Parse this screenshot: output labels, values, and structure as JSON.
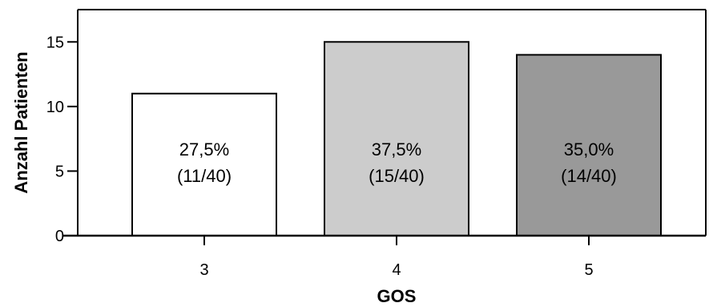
{
  "chart_data": {
    "type": "bar",
    "title": "",
    "xlabel": "GOS",
    "ylabel": "Anzahl Patienten",
    "ylim": [
      0,
      17.5
    ],
    "yticks": [
      0,
      5,
      10,
      15
    ],
    "categories": [
      "3",
      "4",
      "5"
    ],
    "values": [
      11,
      15,
      14
    ],
    "bar_colors": [
      "#ffffff",
      "#cccccc",
      "#999999"
    ],
    "bar_labels": [
      {
        "line1": "27,5%",
        "line2": "(11/40)"
      },
      {
        "line1": "37,5%",
        "line2": "(15/40)"
      },
      {
        "line1": "35,0%",
        "line2": "(14/40)"
      }
    ],
    "grid": false,
    "legend": "none"
  }
}
